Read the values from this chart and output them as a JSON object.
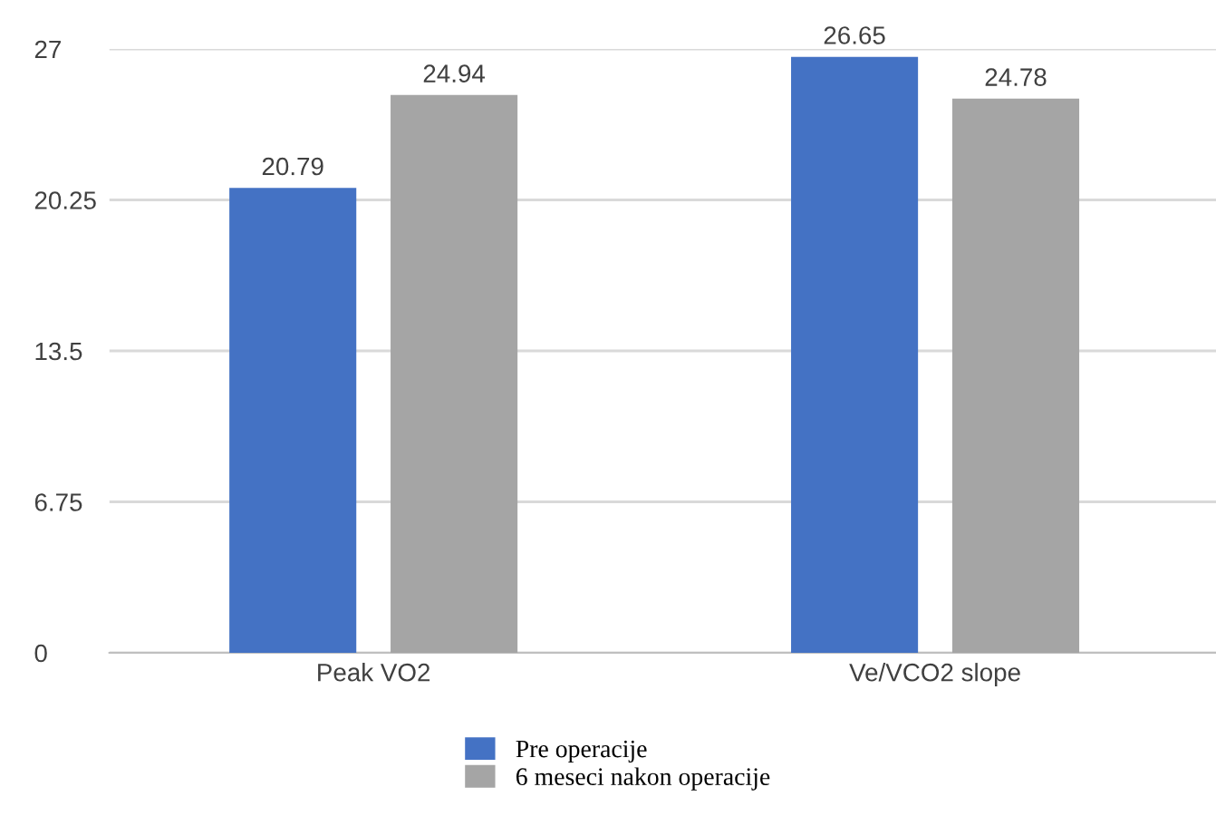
{
  "chart_data": {
    "type": "bar",
    "categories": [
      "Peak VO2",
      "Ve/VCO2 slope"
    ],
    "series": [
      {
        "name": "Pre operacije",
        "color": "#4472c4",
        "values": [
          20.79,
          26.65
        ]
      },
      {
        "name": "6 meseci nakon operacije",
        "color": "#a5a5a5",
        "values": [
          24.94,
          24.78
        ]
      }
    ],
    "ylim": [
      0,
      27
    ],
    "yticks": [
      0,
      6.75,
      13.5,
      20.25,
      27
    ],
    "grid": "y",
    "legend": "bottom",
    "data_labels": true
  }
}
